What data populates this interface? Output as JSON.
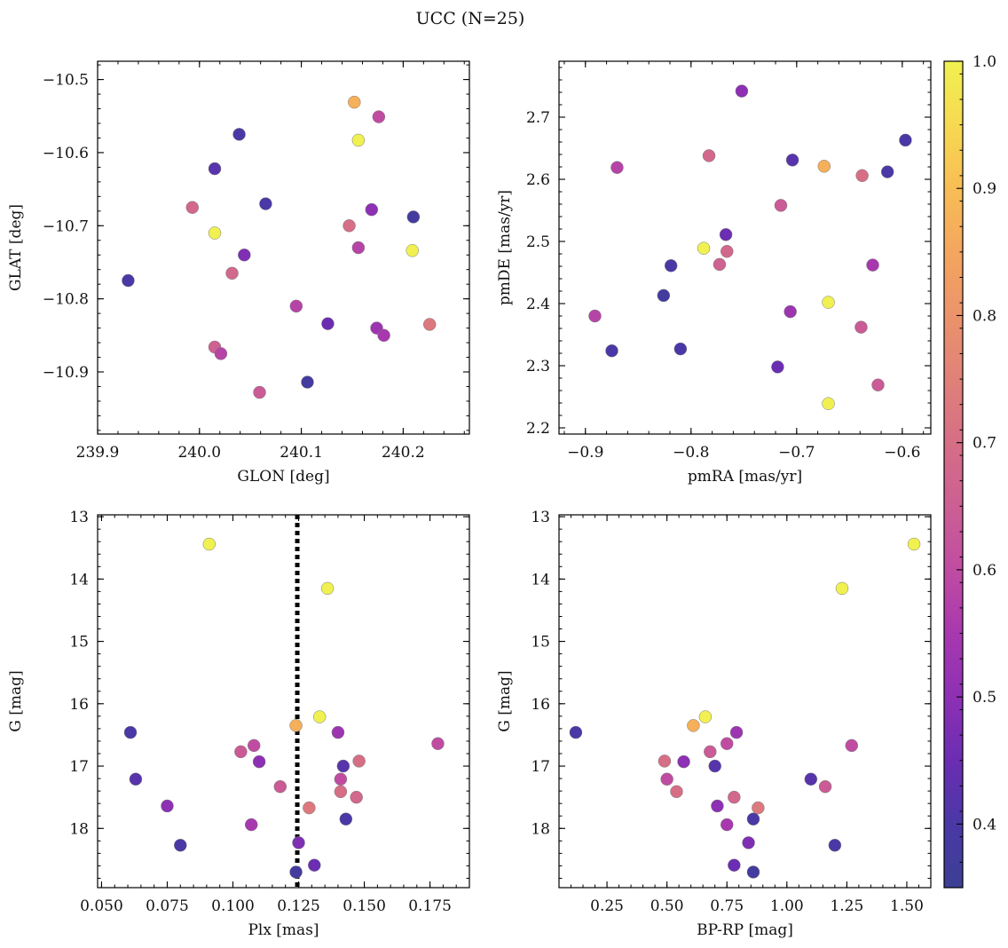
{
  "figure": {
    "title": "UCC (N=25)"
  },
  "chart_data": [
    {
      "type": "scatter",
      "panel": "top-left",
      "xlabel": "GLON [deg]",
      "ylabel": "GLAT [deg]",
      "xlim": [
        239.9,
        240.265
      ],
      "ylim": [
        -10.985,
        -10.475
      ],
      "xticks": [
        239.9,
        240.0,
        240.1,
        240.2
      ],
      "xtick_labels": [
        "239.9",
        "240.0",
        "240.1",
        "240.2"
      ],
      "yticks": [
        -10.5,
        -10.6,
        -10.7,
        -10.8,
        -10.9
      ],
      "ytick_labels": [
        "−10.5",
        "−10.6",
        "−10.7",
        "−10.8",
        "−10.9"
      ],
      "points": [
        {
          "x": 240.152,
          "y": -10.531,
          "c": 0.87
        },
        {
          "x": 240.176,
          "y": -10.551,
          "c": 0.6
        },
        {
          "x": 240.156,
          "y": -10.583,
          "c": 1.0
        },
        {
          "x": 240.039,
          "y": -10.575,
          "c": 0.4
        },
        {
          "x": 240.015,
          "y": -10.622,
          "c": 0.42
        },
        {
          "x": 239.993,
          "y": -10.675,
          "c": 0.68
        },
        {
          "x": 240.065,
          "y": -10.67,
          "c": 0.4
        },
        {
          "x": 240.169,
          "y": -10.678,
          "c": 0.5
        },
        {
          "x": 240.21,
          "y": -10.688,
          "c": 0.38
        },
        {
          "x": 240.147,
          "y": -10.7,
          "c": 0.7
        },
        {
          "x": 240.015,
          "y": -10.71,
          "c": 1.0
        },
        {
          "x": 240.156,
          "y": -10.73,
          "c": 0.58
        },
        {
          "x": 240.209,
          "y": -10.734,
          "c": 1.0
        },
        {
          "x": 240.044,
          "y": -10.74,
          "c": 0.48
        },
        {
          "x": 240.032,
          "y": -10.765,
          "c": 0.68
        },
        {
          "x": 239.93,
          "y": -10.775,
          "c": 0.4
        },
        {
          "x": 240.095,
          "y": -10.81,
          "c": 0.58
        },
        {
          "x": 240.126,
          "y": -10.834,
          "c": 0.45
        },
        {
          "x": 240.226,
          "y": -10.835,
          "c": 0.73
        },
        {
          "x": 240.174,
          "y": -10.84,
          "c": 0.53
        },
        {
          "x": 240.181,
          "y": -10.85,
          "c": 0.55
        },
        {
          "x": 240.015,
          "y": -10.866,
          "c": 0.66
        },
        {
          "x": 240.021,
          "y": -10.875,
          "c": 0.58
        },
        {
          "x": 240.106,
          "y": -10.914,
          "c": 0.38
        },
        {
          "x": 240.059,
          "y": -10.928,
          "c": 0.64
        }
      ]
    },
    {
      "type": "scatter",
      "panel": "top-right",
      "xlabel": "pmRA [mas/yr]",
      "ylabel": "pmDE [mas/yr]",
      "xlim": [
        -0.925,
        -0.573
      ],
      "ylim": [
        2.19,
        2.79
      ],
      "xticks": [
        -0.9,
        -0.8,
        -0.7,
        -0.6
      ],
      "xtick_labels": [
        "−0.9",
        "−0.8",
        "−0.7",
        "−0.6"
      ],
      "yticks": [
        2.2,
        2.3,
        2.4,
        2.5,
        2.6,
        2.7
      ],
      "ytick_labels": [
        "2.2",
        "2.3",
        "2.4",
        "2.5",
        "2.6",
        "2.7"
      ],
      "points": [
        {
          "x": -0.752,
          "y": 2.742,
          "c": 0.5
        },
        {
          "x": -0.597,
          "y": 2.663,
          "c": 0.4
        },
        {
          "x": -0.783,
          "y": 2.638,
          "c": 0.68
        },
        {
          "x": -0.704,
          "y": 2.631,
          "c": 0.42
        },
        {
          "x": -0.674,
          "y": 2.621,
          "c": 0.87
        },
        {
          "x": -0.87,
          "y": 2.619,
          "c": 0.58
        },
        {
          "x": -0.614,
          "y": 2.612,
          "c": 0.4
        },
        {
          "x": -0.638,
          "y": 2.606,
          "c": 0.7
        },
        {
          "x": -0.715,
          "y": 2.558,
          "c": 0.64
        },
        {
          "x": -0.767,
          "y": 2.511,
          "c": 0.45
        },
        {
          "x": -0.788,
          "y": 2.489,
          "c": 1.0
        },
        {
          "x": -0.766,
          "y": 2.484,
          "c": 0.68
        },
        {
          "x": -0.773,
          "y": 2.463,
          "c": 0.66
        },
        {
          "x": -0.628,
          "y": 2.462,
          "c": 0.55
        },
        {
          "x": -0.819,
          "y": 2.461,
          "c": 0.4
        },
        {
          "x": -0.826,
          "y": 2.413,
          "c": 0.38
        },
        {
          "x": -0.67,
          "y": 2.402,
          "c": 1.0
        },
        {
          "x": -0.706,
          "y": 2.387,
          "c": 0.53
        },
        {
          "x": -0.891,
          "y": 2.38,
          "c": 0.58
        },
        {
          "x": -0.639,
          "y": 2.362,
          "c": 0.64
        },
        {
          "x": -0.81,
          "y": 2.327,
          "c": 0.4
        },
        {
          "x": -0.875,
          "y": 2.324,
          "c": 0.4
        },
        {
          "x": -0.718,
          "y": 2.298,
          "c": 0.45
        },
        {
          "x": -0.623,
          "y": 2.269,
          "c": 0.64
        },
        {
          "x": -0.67,
          "y": 2.239,
          "c": 1.0
        }
      ]
    },
    {
      "type": "scatter",
      "panel": "bottom-left",
      "xlabel": "Plx [mas]",
      "ylabel": "G [mag]",
      "xlim": [
        0.0485,
        0.19
      ],
      "ylim": [
        18.95,
        12.97
      ],
      "y_inverted": true,
      "xticks": [
        0.05,
        0.075,
        0.1,
        0.125,
        0.15,
        0.175
      ],
      "xtick_labels": [
        "0.050",
        "0.075",
        "0.100",
        "0.125",
        "0.150",
        "0.175"
      ],
      "yticks": [
        13,
        14,
        15,
        16,
        17,
        18
      ],
      "ytick_labels": [
        "13",
        "14",
        "15",
        "16",
        "17",
        "18"
      ],
      "vline": {
        "x": 0.1245,
        "style": "dotted",
        "color": "#000000"
      },
      "points": [
        {
          "x": 0.091,
          "y": 13.44,
          "c": 1.0
        },
        {
          "x": 0.136,
          "y": 14.15,
          "c": 1.0
        },
        {
          "x": 0.133,
          "y": 16.21,
          "c": 1.0
        },
        {
          "x": 0.124,
          "y": 16.35,
          "c": 0.87
        },
        {
          "x": 0.061,
          "y": 16.46,
          "c": 0.4
        },
        {
          "x": 0.14,
          "y": 16.46,
          "c": 0.53
        },
        {
          "x": 0.178,
          "y": 16.64,
          "c": 0.6
        },
        {
          "x": 0.108,
          "y": 16.67,
          "c": 0.6
        },
        {
          "x": 0.103,
          "y": 16.77,
          "c": 0.64
        },
        {
          "x": 0.148,
          "y": 16.92,
          "c": 0.7
        },
        {
          "x": 0.11,
          "y": 16.93,
          "c": 0.5
        },
        {
          "x": 0.142,
          "y": 17.0,
          "c": 0.42
        },
        {
          "x": 0.063,
          "y": 17.21,
          "c": 0.42
        },
        {
          "x": 0.141,
          "y": 17.21,
          "c": 0.6
        },
        {
          "x": 0.118,
          "y": 17.33,
          "c": 0.64
        },
        {
          "x": 0.141,
          "y": 17.41,
          "c": 0.7
        },
        {
          "x": 0.147,
          "y": 17.5,
          "c": 0.68
        },
        {
          "x": 0.075,
          "y": 17.64,
          "c": 0.5
        },
        {
          "x": 0.129,
          "y": 17.67,
          "c": 0.73
        },
        {
          "x": 0.143,
          "y": 17.85,
          "c": 0.4
        },
        {
          "x": 0.107,
          "y": 17.94,
          "c": 0.55
        },
        {
          "x": 0.125,
          "y": 18.23,
          "c": 0.48
        },
        {
          "x": 0.08,
          "y": 18.27,
          "c": 0.4
        },
        {
          "x": 0.131,
          "y": 18.59,
          "c": 0.45
        },
        {
          "x": 0.124,
          "y": 18.7,
          "c": 0.38
        }
      ]
    },
    {
      "type": "scatter",
      "panel": "bottom-right",
      "xlabel": "BP-RP [mag]",
      "ylabel": "G [mag]",
      "xlim": [
        0.05,
        1.6
      ],
      "ylim": [
        18.95,
        12.97
      ],
      "y_inverted": true,
      "xticks": [
        0.25,
        0.5,
        0.75,
        1.0,
        1.25,
        1.5
      ],
      "xtick_labels": [
        "0.25",
        "0.50",
        "0.75",
        "1.00",
        "1.25",
        "1.50"
      ],
      "yticks": [
        13,
        14,
        15,
        16,
        17,
        18
      ],
      "ytick_labels": [
        "13",
        "14",
        "15",
        "16",
        "17",
        "18"
      ],
      "points": [
        {
          "x": 1.53,
          "y": 13.44,
          "c": 1.0
        },
        {
          "x": 1.23,
          "y": 14.15,
          "c": 1.0
        },
        {
          "x": 0.66,
          "y": 16.21,
          "c": 1.0
        },
        {
          "x": 0.61,
          "y": 16.35,
          "c": 0.87
        },
        {
          "x": 0.12,
          "y": 16.46,
          "c": 0.4
        },
        {
          "x": 0.79,
          "y": 16.46,
          "c": 0.53
        },
        {
          "x": 0.75,
          "y": 16.64,
          "c": 0.6
        },
        {
          "x": 1.27,
          "y": 16.67,
          "c": 0.6
        },
        {
          "x": 0.68,
          "y": 16.77,
          "c": 0.64
        },
        {
          "x": 0.49,
          "y": 16.92,
          "c": 0.7
        },
        {
          "x": 0.57,
          "y": 16.93,
          "c": 0.5
        },
        {
          "x": 0.7,
          "y": 17.0,
          "c": 0.42
        },
        {
          "x": 1.1,
          "y": 17.21,
          "c": 0.42
        },
        {
          "x": 0.5,
          "y": 17.21,
          "c": 0.6
        },
        {
          "x": 1.16,
          "y": 17.33,
          "c": 0.64
        },
        {
          "x": 0.54,
          "y": 17.41,
          "c": 0.7
        },
        {
          "x": 0.78,
          "y": 17.5,
          "c": 0.68
        },
        {
          "x": 0.71,
          "y": 17.64,
          "c": 0.5
        },
        {
          "x": 0.88,
          "y": 17.67,
          "c": 0.73
        },
        {
          "x": 0.86,
          "y": 17.85,
          "c": 0.4
        },
        {
          "x": 0.75,
          "y": 17.94,
          "c": 0.55
        },
        {
          "x": 0.84,
          "y": 18.23,
          "c": 0.48
        },
        {
          "x": 1.2,
          "y": 18.27,
          "c": 0.4
        },
        {
          "x": 0.78,
          "y": 18.59,
          "c": 0.45
        },
        {
          "x": 0.86,
          "y": 18.7,
          "c": 0.38
        }
      ]
    },
    {
      "type": "colorbar",
      "colormap": "plasma",
      "range": [
        0.35,
        1.0
      ],
      "ticks": [
        0.4,
        0.5,
        0.6,
        0.7,
        0.8,
        0.9,
        1.0
      ],
      "tick_labels": [
        "0.4",
        "0.5",
        "0.6",
        "0.7",
        "0.8",
        "0.9",
        "1.0"
      ],
      "colormap_stops": [
        {
          "v": 0.35,
          "color": "#3c3f94"
        },
        {
          "v": 0.4,
          "color": "#4a38a6"
        },
        {
          "v": 0.45,
          "color": "#6b2db2"
        },
        {
          "v": 0.5,
          "color": "#8d30b4"
        },
        {
          "v": 0.55,
          "color": "#a838af"
        },
        {
          "v": 0.6,
          "color": "#c04ca2"
        },
        {
          "v": 0.65,
          "color": "#cc5f93"
        },
        {
          "v": 0.7,
          "color": "#d66e86"
        },
        {
          "v": 0.75,
          "color": "#e08178"
        },
        {
          "v": 0.8,
          "color": "#eb936b"
        },
        {
          "v": 0.85,
          "color": "#f4a65e"
        },
        {
          "v": 0.9,
          "color": "#f8bd55"
        },
        {
          "v": 0.95,
          "color": "#f7d951"
        },
        {
          "v": 1.0,
          "color": "#f0f150"
        }
      ]
    }
  ]
}
